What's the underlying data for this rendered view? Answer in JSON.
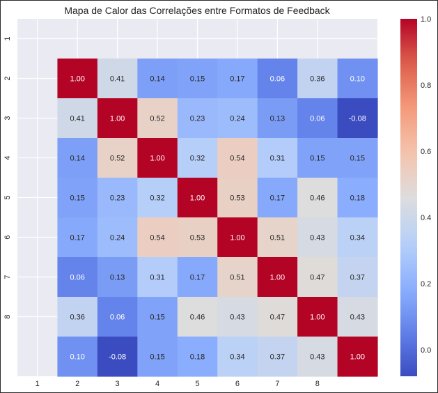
{
  "chart_data": {
    "type": "heatmap",
    "title": "Mapa de Calor das Correlações entre Formatos de Feedback",
    "xlabel": "",
    "ylabel": "",
    "x_ticks": [
      "1",
      "2",
      "3",
      "4",
      "5",
      "6",
      "7",
      "8"
    ],
    "y_ticks": [
      "1",
      "2",
      "3",
      "4",
      "5",
      "6",
      "7",
      "8"
    ],
    "matrix": [
      [
        1.0,
        0.41,
        0.14,
        0.15,
        0.17,
        0.06,
        0.36,
        0.1
      ],
      [
        0.41,
        1.0,
        0.52,
        0.23,
        0.24,
        0.13,
        0.06,
        -0.08
      ],
      [
        0.14,
        0.52,
        1.0,
        0.32,
        0.54,
        0.31,
        0.15,
        0.15
      ],
      [
        0.15,
        0.23,
        0.32,
        1.0,
        0.53,
        0.17,
        0.46,
        0.18
      ],
      [
        0.17,
        0.24,
        0.54,
        0.53,
        1.0,
        0.51,
        0.43,
        0.34
      ],
      [
        0.06,
        0.13,
        0.31,
        0.17,
        0.51,
        1.0,
        0.47,
        0.37
      ],
      [
        0.36,
        0.06,
        0.15,
        0.46,
        0.43,
        0.47,
        1.0,
        0.43
      ],
      [
        0.1,
        -0.08,
        0.15,
        0.18,
        0.34,
        0.37,
        0.43,
        1.0
      ]
    ],
    "colormap": "coolwarm",
    "vmin": -0.08,
    "vmax": 1.0,
    "colorbar_ticks": [
      0.0,
      0.2,
      0.4,
      0.6,
      0.8,
      1.0
    ],
    "colorbar_tick_labels": [
      "0.0",
      "0.2",
      "0.4",
      "0.6",
      "0.8",
      "1.0"
    ],
    "grid": true,
    "background": "#eaeaf2"
  }
}
